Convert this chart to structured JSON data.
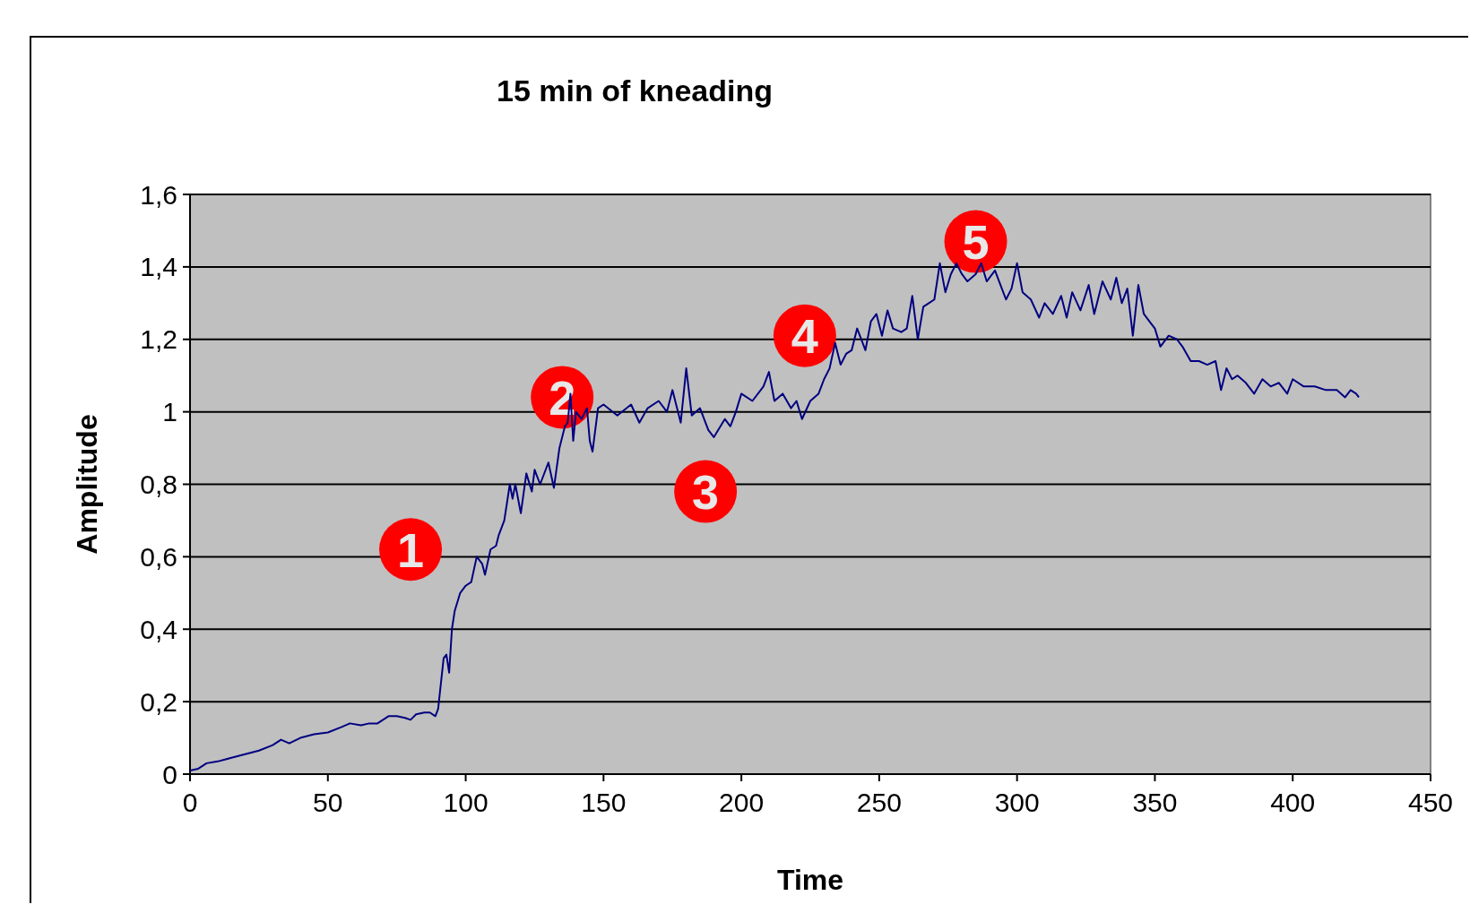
{
  "chart_data": {
    "type": "line",
    "title": "15 min of kneading",
    "xlabel": "Time",
    "ylabel": "Amplitude",
    "x": [
      0,
      3,
      6,
      10,
      15,
      20,
      25,
      30,
      33,
      36,
      40,
      45,
      50,
      55,
      58,
      62,
      65,
      68,
      70,
      72,
      75,
      78,
      80,
      82,
      85,
      87,
      89,
      90,
      91,
      92,
      93,
      94,
      95,
      96,
      98,
      100,
      102,
      104,
      106,
      107,
      109,
      111,
      112,
      114,
      116,
      117,
      118,
      120,
      122,
      124,
      125,
      127,
      130,
      132,
      134,
      136,
      137,
      138,
      139,
      140,
      142,
      144,
      145,
      146,
      148,
      150,
      155,
      160,
      163,
      166,
      170,
      173,
      175,
      178,
      180,
      182,
      185,
      188,
      190,
      194,
      196,
      198,
      200,
      204,
      208,
      210,
      212,
      215,
      218,
      220,
      222,
      225,
      228,
      230,
      232,
      234,
      236,
      238,
      240,
      242,
      245,
      247,
      249,
      251,
      253,
      255,
      258,
      260,
      262,
      264,
      266,
      268,
      270,
      272,
      274,
      276,
      278,
      280,
      282,
      285,
      287,
      289,
      292,
      294,
      296,
      298,
      300,
      302,
      305,
      308,
      310,
      313,
      316,
      318,
      320,
      323,
      326,
      328,
      331,
      334,
      336,
      338,
      340,
      342,
      344,
      346,
      348,
      350,
      352,
      355,
      358,
      360,
      363,
      366,
      369,
      372,
      374,
      376,
      378,
      380,
      383,
      386,
      389,
      392,
      395,
      398,
      400,
      404,
      408,
      412,
      416,
      419,
      421,
      423,
      424
    ],
    "series": [
      {
        "color": "#000080",
        "values": [
          0.01,
          0.015,
          0.03,
          0.035,
          0.045,
          0.055,
          0.065,
          0.08,
          0.095,
          0.085,
          0.1,
          0.11,
          0.115,
          0.13,
          0.14,
          0.135,
          0.14,
          0.14,
          0.15,
          0.16,
          0.16,
          0.155,
          0.15,
          0.165,
          0.17,
          0.17,
          0.16,
          0.18,
          0.25,
          0.32,
          0.33,
          0.28,
          0.4,
          0.45,
          0.5,
          0.52,
          0.53,
          0.6,
          0.58,
          0.55,
          0.62,
          0.63,
          0.66,
          0.7,
          0.8,
          0.76,
          0.8,
          0.72,
          0.83,
          0.78,
          0.84,
          0.8,
          0.86,
          0.79,
          0.9,
          0.96,
          0.97,
          1.05,
          0.92,
          1.0,
          0.98,
          1.01,
          0.92,
          0.89,
          1.01,
          1.02,
          0.99,
          1.02,
          0.97,
          1.01,
          1.03,
          1.0,
          1.06,
          0.97,
          1.12,
          0.99,
          1.01,
          0.95,
          0.93,
          0.98,
          0.96,
          1.0,
          1.05,
          1.03,
          1.07,
          1.11,
          1.03,
          1.05,
          1.01,
          1.03,
          0.98,
          1.03,
          1.05,
          1.09,
          1.12,
          1.19,
          1.13,
          1.16,
          1.17,
          1.23,
          1.17,
          1.25,
          1.27,
          1.21,
          1.28,
          1.23,
          1.22,
          1.23,
          1.32,
          1.2,
          1.29,
          1.3,
          1.31,
          1.41,
          1.33,
          1.38,
          1.41,
          1.38,
          1.36,
          1.38,
          1.41,
          1.36,
          1.39,
          1.35,
          1.31,
          1.34,
          1.41,
          1.33,
          1.31,
          1.26,
          1.3,
          1.27,
          1.32,
          1.26,
          1.33,
          1.28,
          1.35,
          1.27,
          1.36,
          1.31,
          1.37,
          1.3,
          1.34,
          1.21,
          1.35,
          1.27,
          1.25,
          1.23,
          1.18,
          1.21,
          1.2,
          1.18,
          1.14,
          1.14,
          1.13,
          1.14,
          1.06,
          1.12,
          1.09,
          1.1,
          1.08,
          1.05,
          1.09,
          1.07,
          1.08,
          1.05,
          1.09,
          1.07,
          1.07,
          1.06,
          1.06,
          1.04,
          1.06,
          1.05,
          1.04
        ]
      }
    ],
    "xlim": [
      0,
      450
    ],
    "xticks": [
      0,
      50,
      100,
      150,
      200,
      250,
      300,
      350,
      400,
      450
    ],
    "ylim": [
      0,
      1.6
    ],
    "yticks": [
      0,
      {
        "value": 0.2,
        "label": "0,2"
      },
      {
        "value": 0.4,
        "label": "0,4"
      },
      {
        "value": 0.6,
        "label": "0,6"
      },
      {
        "value": 0.8,
        "label": "0,8"
      },
      1,
      {
        "value": 1.2,
        "label": "1,2"
      },
      {
        "value": 1.4,
        "label": "1,4"
      },
      {
        "value": 1.6,
        "label": "1,6"
      }
    ],
    "grid": "y",
    "marker": "none",
    "line_style": "solid",
    "annotations": [
      "1",
      "2",
      "3",
      "4",
      "5"
    ]
  }
}
